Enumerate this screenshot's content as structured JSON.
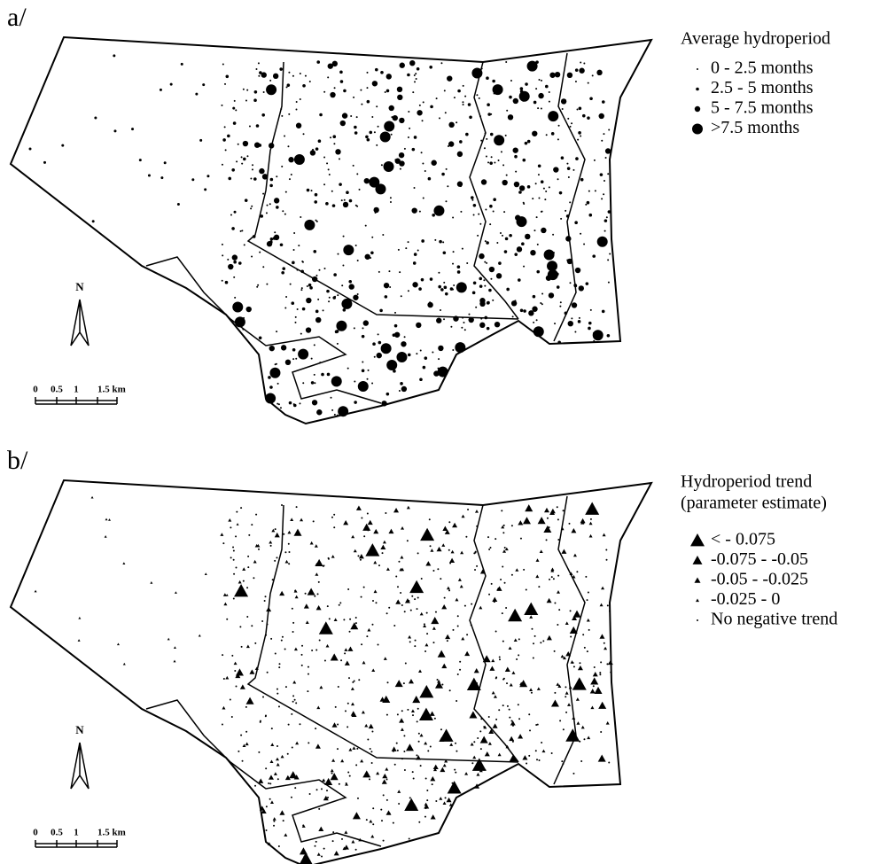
{
  "panels": [
    {
      "label": "a/",
      "marker": "circle",
      "legend": {
        "title": [
          "Average hydroperiod"
        ],
        "items": [
          "0 - 2.5 months",
          "2.5 - 5 months",
          "5 - 7.5 months",
          ">7.5 months"
        ]
      },
      "north": "N",
      "scale": [
        "0",
        "0.5",
        "1",
        "1.5 km"
      ]
    },
    {
      "label": "b/",
      "marker": "triangle",
      "legend": {
        "title": [
          "Hydroperiod trend",
          "(parameter estimate)"
        ],
        "items": [
          "< - 0.075",
          "-0.075 - -0.05",
          "-0.05 - -0.025",
          "-0.025 - 0",
          "No negative trend"
        ]
      },
      "north": "N",
      "scale": [
        "0",
        "0.5",
        "1",
        "1.5 km"
      ]
    }
  ]
}
